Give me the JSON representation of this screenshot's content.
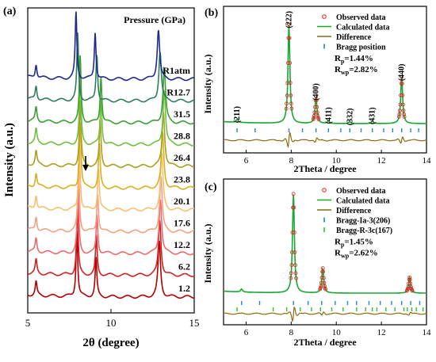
{
  "chart_data": [
    {
      "panel": "(a)",
      "type": "line",
      "xlabel": "2θ (degree)",
      "ylabel": "Intensity (a.u.)",
      "xlim": [
        5,
        15
      ],
      "xticks": [
        "5",
        "10",
        "15"
      ],
      "legend_title": "Pressure (GPa)",
      "series": [
        {
          "name": "1.2",
          "color": "#b00000",
          "peaks": [
            [
              5.5,
              0.25
            ],
            [
              7.95,
              1.2
            ],
            [
              9.1,
              0.7
            ],
            [
              12.9,
              1.0
            ]
          ]
        },
        {
          "name": "6.2",
          "color": "#d42020",
          "peaks": [
            [
              5.5,
              0.25
            ],
            [
              7.98,
              1.2
            ],
            [
              9.12,
              0.7
            ],
            [
              12.93,
              1.0
            ]
          ]
        },
        {
          "name": "12.2",
          "color": "#ee6a6a",
          "peaks": [
            [
              5.5,
              0.25
            ],
            [
              8.02,
              1.2
            ],
            [
              9.16,
              0.7
            ],
            [
              12.97,
              1.0
            ]
          ]
        },
        {
          "name": "17.6",
          "color": "#f5a080",
          "peaks": [
            [
              5.5,
              0.25
            ],
            [
              8.05,
              1.2
            ],
            [
              9.2,
              0.7
            ],
            [
              13.0,
              1.0
            ]
          ]
        },
        {
          "name": "20.1",
          "color": "#f8c070",
          "peaks": [
            [
              5.5,
              0.25
            ],
            [
              8.1,
              1.2
            ],
            [
              9.25,
              0.75
            ],
            [
              13.05,
              1.0
            ]
          ]
        },
        {
          "name": "23.8",
          "color": "#d8b020",
          "peaks": [
            [
              5.5,
              0.25
            ],
            [
              8.15,
              1.2
            ],
            [
              9.3,
              0.8
            ],
            [
              13.1,
              1.0
            ]
          ]
        },
        {
          "name": "26.4",
          "color": "#a8a020",
          "peaks": [
            [
              5.5,
              0.25
            ],
            [
              8.15,
              1.2
            ],
            [
              9.35,
              0.85
            ],
            [
              13.15,
              1.0
            ]
          ]
        },
        {
          "name": "28.8",
          "color": "#6fc040",
          "peaks": [
            [
              5.5,
              0.25
            ],
            [
              8.15,
              1.2
            ],
            [
              9.4,
              0.85
            ],
            [
              13.2,
              1.0
            ]
          ]
        },
        {
          "name": "31.5",
          "color": "#3aa030",
          "peaks": [
            [
              5.5,
              0.25
            ],
            [
              8.15,
              1.2
            ],
            [
              9.4,
              0.85
            ],
            [
              13.2,
              1.0
            ]
          ]
        },
        {
          "name": "R12.7",
          "color": "#2e7d5b",
          "peaks": [
            [
              5.5,
              0.25
            ],
            [
              8.0,
              1.2
            ],
            [
              9.15,
              0.85
            ],
            [
              12.95,
              0.9
            ]
          ]
        },
        {
          "name": "R1atm",
          "color": "#1f2a8c",
          "peaks": [
            [
              5.5,
              0.25
            ],
            [
              7.9,
              1.2
            ],
            [
              9.05,
              0.85
            ],
            [
              12.85,
              0.9
            ]
          ]
        }
      ]
    },
    {
      "panel": "(b)",
      "type": "line",
      "xlabel": "2Theta / degree",
      "ylabel": "Intensity (a.u.)",
      "xlim": [
        5,
        14
      ],
      "xticks": [
        "6",
        "8",
        "10",
        "12",
        "14"
      ],
      "legend": [
        "Observed data",
        "Calculated data",
        "Difference",
        "Bragg position"
      ],
      "stats": {
        "Rp": "=1.44%",
        "Rwp": "=2.82%"
      },
      "peak_labels": [
        {
          "text": "(211)",
          "x": 5.6
        },
        {
          "text": "(222)",
          "x": 7.9
        },
        {
          "text": "(400)",
          "x": 9.1
        },
        {
          "text": "(411)",
          "x": 9.65
        },
        {
          "text": "(332)",
          "x": 10.6
        },
        {
          "text": "(431)",
          "x": 11.6
        },
        {
          "text": "(440)",
          "x": 12.9
        }
      ],
      "bragg": [
        5.6,
        6.4,
        7.9,
        8.5,
        9.1,
        9.65,
        10.2,
        10.6,
        11.1,
        11.6,
        12.1,
        12.5,
        12.9,
        13.3,
        13.65
      ],
      "peaks": [
        [
          5.6,
          0.03
        ],
        [
          7.9,
          1.0
        ],
        [
          9.1,
          0.27
        ],
        [
          9.65,
          0.03
        ],
        [
          10.6,
          0.02
        ],
        [
          11.6,
          0.03
        ],
        [
          12.9,
          0.47
        ]
      ],
      "colors": {
        "observed": "#e02020",
        "calculated": "#18a830",
        "difference": "#8a6a10",
        "bragg": "#1e88c8"
      }
    },
    {
      "panel": "(c)",
      "type": "line",
      "xlabel": "2Theta / degree",
      "ylabel": "Intensity (a.u.)",
      "xlim": [
        5,
        14
      ],
      "xticks": [
        "6",
        "8",
        "10",
        "12",
        "14"
      ],
      "legend": [
        "Observed data",
        "Calculated data",
        "Difference",
        "Bragg-Ia-3(206)",
        "Bragg-R-3c(167)"
      ],
      "stats": {
        "Rp": "=1.45%",
        "Rwp": "=2.62%"
      },
      "bragg_1": [
        5.8,
        6.6,
        8.1,
        8.75,
        9.35,
        9.95,
        10.5,
        10.9,
        11.45,
        11.95,
        12.45,
        12.9,
        13.3,
        13.7
      ],
      "bragg_2": [
        5.6,
        7.2,
        7.8,
        8.4,
        8.9,
        9.3,
        9.8,
        10.3,
        10.9,
        11.3,
        11.6,
        11.8,
        12.2,
        12.6,
        13.0,
        13.15,
        13.35,
        13.55,
        13.85
      ],
      "peaks": [
        [
          5.8,
          0.03
        ],
        [
          8.1,
          1.0
        ],
        [
          9.4,
          0.25
        ],
        [
          13.25,
          0.16
        ]
      ],
      "colors": {
        "observed": "#e02020",
        "calculated": "#18a830",
        "difference": "#8a6a10",
        "bragg_1": "#1e88c8",
        "bragg_2": "#30c030"
      }
    }
  ]
}
